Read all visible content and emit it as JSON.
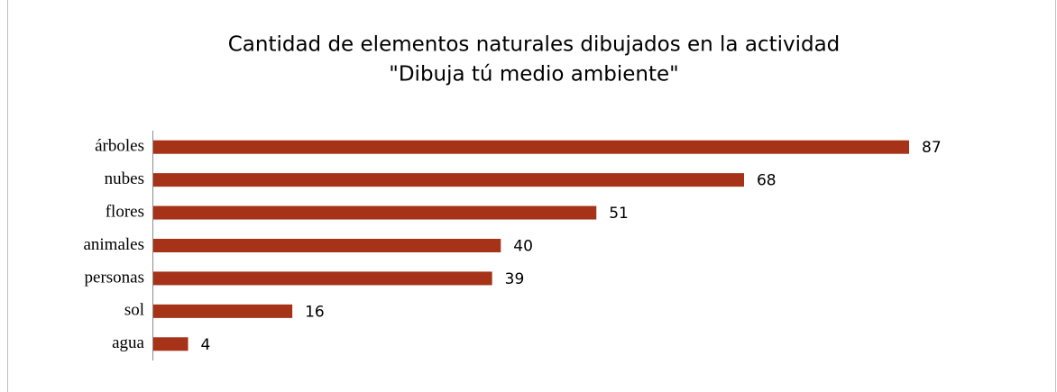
{
  "chart_data": {
    "type": "bar",
    "orientation": "horizontal",
    "title": [
      "Cantidad de elementos naturales dibujados en la actividad",
      "\"Dibuja tú medio ambiente\""
    ],
    "categories": [
      "árboles",
      "nubes",
      "flores",
      "animales",
      "personas",
      "sol",
      "agua"
    ],
    "values": [
      87,
      68,
      51,
      40,
      39,
      16,
      4
    ],
    "color": "#a63218"
  }
}
